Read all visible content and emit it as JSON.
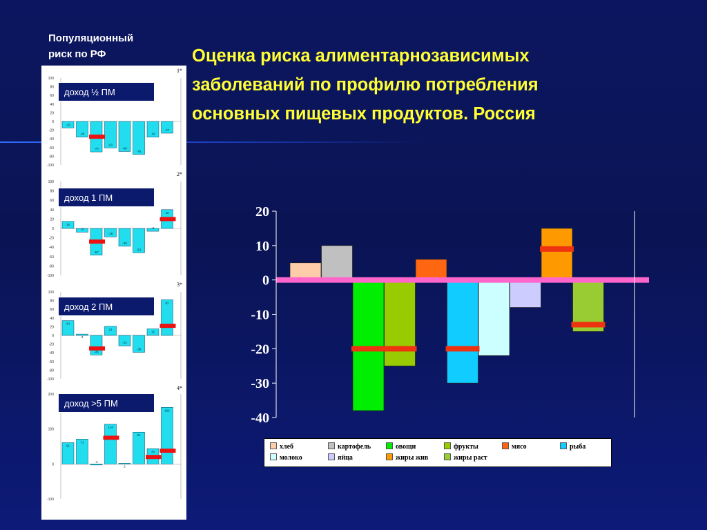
{
  "panel_title": "Популяционный\nриск по РФ",
  "slide_title": "Оценка риска алиментарнозависимых\nзаболеваний по профилю потребления\nосновных пищевых продуктов. Россия",
  "chart_data": [
    {
      "type": "bar",
      "title": "",
      "categories": [
        "хлеб",
        "картофель",
        "овощи",
        "фрукты",
        "мясо",
        "рыба",
        "молоко",
        "яйца",
        "жиры жив",
        "жиры раст"
      ],
      "values": [
        5,
        10,
        -38,
        -25,
        6,
        -30,
        -22,
        -8,
        15,
        -15
      ],
      "risk_markers": [
        null,
        null,
        -20,
        -20,
        null,
        -20,
        null,
        null,
        9,
        -13
      ],
      "colors": [
        "#ffccaa",
        "#c0c0c0",
        "#00ee00",
        "#99cc00",
        "#ff6611",
        "#11ccff",
        "#ccffff",
        "#ccccff",
        "#ff9900",
        "#99cc33"
      ],
      "yticks": [
        20,
        10,
        0,
        -10,
        -20,
        -30,
        -40
      ],
      "ylim": [
        -40,
        20
      ],
      "xlabel": "",
      "ylabel": "",
      "legend": [
        "хлеб",
        "картофель",
        "овощи",
        "фрукты",
        "мясо",
        "рыба",
        "молоко",
        "яйца",
        "жиры жив",
        "жиры раст"
      ],
      "legend_position": "bottom"
    },
    {
      "type": "bar",
      "label": "доход ½ ПМ",
      "corner": "1*",
      "yticks": [
        100,
        80,
        60,
        40,
        20,
        0,
        -20,
        -40,
        -60,
        -80,
        -100
      ],
      "ylim": [
        -100,
        100
      ],
      "values": [
        -15,
        -36,
        -70,
        -61,
        -69,
        -76,
        -36,
        -27
      ],
      "markers": [
        null,
        null,
        -35,
        null,
        null,
        null,
        null,
        null
      ]
    },
    {
      "type": "bar",
      "label": "доход 1 ПМ",
      "corner": "2*",
      "yticks": [
        100,
        80,
        60,
        40,
        20,
        0,
        -20,
        -40,
        -60,
        -80,
        -100
      ],
      "ylim": [
        -100,
        100
      ],
      "values": [
        15,
        -8,
        -57,
        -18,
        -38,
        -52,
        -6,
        40
      ],
      "markers": [
        null,
        null,
        -28,
        null,
        null,
        null,
        null,
        20
      ]
    },
    {
      "type": "bar",
      "label": "доход 2 ПМ",
      "corner": "3*",
      "yticks": [
        100,
        80,
        60,
        40,
        20,
        0,
        -20,
        -40,
        -60,
        -80,
        -100
      ],
      "ylim": [
        -100,
        100
      ],
      "values": [
        34,
        3,
        -45,
        21,
        -24,
        -39,
        15,
        82
      ],
      "markers": [
        null,
        null,
        -30,
        null,
        null,
        null,
        null,
        22
      ]
    },
    {
      "type": "bar",
      "label": "доход >5 ПМ",
      "corner": "4*",
      "yticks": [
        200,
        100,
        0,
        -100
      ],
      "ylim": [
        -100,
        200
      ],
      "values": [
        61,
        71,
        -3,
        114,
        2,
        91,
        44,
        162
      ],
      "markers": [
        null,
        null,
        null,
        75,
        null,
        null,
        20,
        38
      ]
    }
  ]
}
